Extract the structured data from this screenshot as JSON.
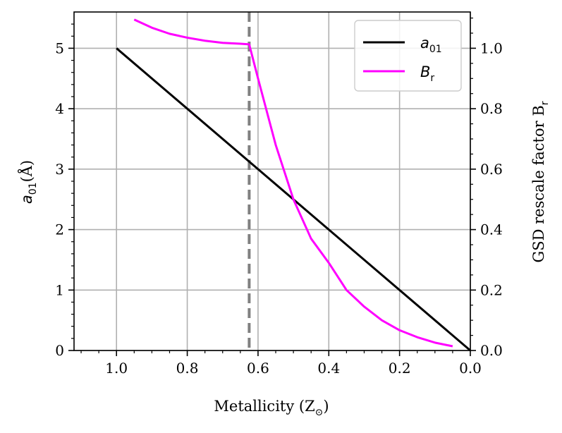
{
  "chart_data": {
    "type": "line",
    "title": "",
    "xlabel": "Metallicity (Z",
    "xlabel_sub": "⊙",
    "xlabel_close": ")",
    "ylabel_left": "a",
    "ylabel_left_sub": "01",
    "ylabel_left_unit": "(Å)",
    "ylabel_right": "GSD rescale factor B",
    "ylabel_right_sub": "r",
    "xlim": [
      1.12,
      0.0
    ],
    "ylim_left": [
      0,
      5.6
    ],
    "ylim_right": [
      0,
      1.12
    ],
    "x_inverted": true,
    "grid": true,
    "x_ticks": [
      1.0,
      0.8,
      0.6,
      0.4,
      0.2,
      0.0
    ],
    "x_tick_labels": [
      "1.0",
      "0.8",
      "0.6",
      "0.4",
      "0.2",
      "0.0"
    ],
    "y_left_ticks": [
      0,
      1,
      2,
      3,
      4,
      5
    ],
    "y_left_tick_labels": [
      "0",
      "1",
      "2",
      "3",
      "4",
      "5"
    ],
    "y_right_ticks": [
      0.0,
      0.2,
      0.4,
      0.6,
      0.8,
      1.0
    ],
    "y_right_tick_labels": [
      "0.0",
      "0.2",
      "0.4",
      "0.6",
      "0.8",
      "1.0"
    ],
    "vline": {
      "x": 0.625,
      "color": "#808080",
      "style": "dashed"
    },
    "series": [
      {
        "name": "a",
        "name_sub": "01",
        "axis": "left",
        "color": "#000000",
        "x": [
          1.0,
          0.0
        ],
        "y": [
          5.0,
          0.0
        ]
      },
      {
        "name": "B",
        "name_sub": "r",
        "axis": "right",
        "color": "#ff00ff",
        "x": [
          0.95,
          0.9,
          0.85,
          0.8,
          0.75,
          0.7,
          0.65,
          0.625,
          0.6,
          0.55,
          0.5,
          0.45,
          0.4,
          0.35,
          0.3,
          0.25,
          0.2,
          0.15,
          0.1,
          0.05
        ],
        "y": [
          1.095,
          1.068,
          1.048,
          1.035,
          1.025,
          1.018,
          1.015,
          1.013,
          0.9,
          0.68,
          0.5,
          0.37,
          0.29,
          0.2,
          0.145,
          0.1,
          0.067,
          0.044,
          0.026,
          0.014
        ]
      }
    ],
    "legend_position": "top-right"
  }
}
